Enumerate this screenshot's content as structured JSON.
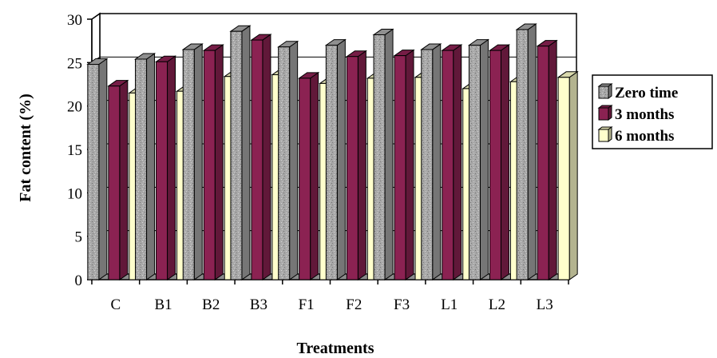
{
  "chart_data": {
    "type": "bar",
    "categories": [
      "C",
      "B1",
      "B2",
      "B3",
      "F1",
      "F2",
      "F3",
      "L1",
      "L2",
      "L3"
    ],
    "series": [
      {
        "name": "Zero time",
        "values": [
          24.8,
          25.4,
          26.5,
          28.6,
          26.8,
          27.0,
          28.2,
          26.5,
          27.0,
          28.8
        ],
        "color": "#a8a8a8"
      },
      {
        "name": "3 months",
        "values": [
          22.3,
          25.1,
          26.4,
          27.6,
          23.2,
          25.7,
          25.8,
          26.4,
          26.4,
          26.9
        ],
        "color": "#8b2252"
      },
      {
        "name": "6 months",
        "values": [
          21.5,
          21.7,
          23.4,
          23.6,
          22.6,
          23.2,
          23.3,
          22.0,
          22.8,
          23.3
        ],
        "color": "#ffffcc"
      }
    ],
    "xlabel": "Treatments",
    "ylabel": "Fat content (%)",
    "ylim": [
      0,
      30
    ],
    "yticks": [
      0,
      5,
      10,
      15,
      20,
      25,
      30
    ],
    "grid": true,
    "legend_position": "right",
    "style": "3d-column"
  }
}
